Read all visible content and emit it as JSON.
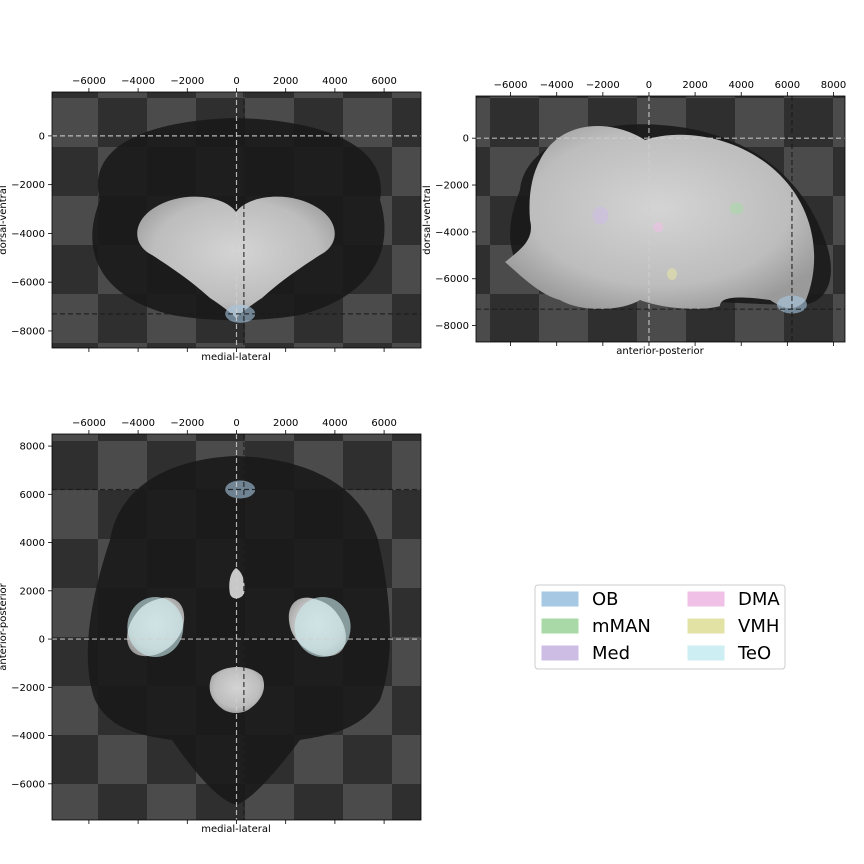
{
  "chart_data": [
    {
      "type": "heatmap",
      "panel": "coronal",
      "xlabel": "medial-lateral",
      "ylabel": "dorsal-ventral",
      "xlim": [
        -7500,
        7500
      ],
      "ylim": [
        -8700,
        1800
      ],
      "xticks": [
        -6000,
        -4000,
        -2000,
        0,
        2000,
        4000,
        6000
      ],
      "yticks": [
        0,
        -2000,
        -4000,
        -6000,
        -8000
      ],
      "crosshair": {
        "x": [
          0,
          300
        ],
        "y": [
          0,
          -7300
        ]
      },
      "regions": [
        {
          "name": "OB",
          "x": 150,
          "y": -7300
        }
      ]
    },
    {
      "type": "heatmap",
      "panel": "sagittal",
      "xlabel": "anterior-posterior",
      "ylabel": "dorsal-ventral",
      "xlim": [
        -7500,
        8500
      ],
      "ylim": [
        -8700,
        1800
      ],
      "xticks": [
        -6000,
        -4000,
        -2000,
        0,
        2000,
        4000,
        6000,
        8000
      ],
      "yticks": [
        0,
        -2000,
        -4000,
        -6000,
        -8000
      ],
      "crosshair": {
        "x": [
          0,
          6200
        ],
        "y": [
          0,
          -7300
        ]
      },
      "regions": [
        {
          "name": "OB",
          "x": 6200,
          "y": -7100
        },
        {
          "name": "mMAN",
          "x": 3800,
          "y": -3000
        },
        {
          "name": "Med",
          "x": -2100,
          "y": -3300
        },
        {
          "name": "DMA",
          "x": 400,
          "y": -3800
        },
        {
          "name": "VMH",
          "x": 1000,
          "y": -5800
        }
      ]
    },
    {
      "type": "heatmap",
      "panel": "horizontal",
      "xlabel": "medial-lateral",
      "ylabel": "anterior-posterior",
      "xlim": [
        -7500,
        7500
      ],
      "ylim": [
        -7500,
        8500
      ],
      "xticks": [
        -6000,
        -4000,
        -2000,
        0,
        2000,
        4000,
        6000
      ],
      "yticks": [
        8000,
        6000,
        4000,
        2000,
        0,
        -2000,
        -4000,
        -6000
      ],
      "crosshair": {
        "x": [
          0,
          300
        ],
        "y": [
          0,
          6200
        ]
      },
      "regions": [
        {
          "name": "OB",
          "x": 150,
          "y": 6200
        },
        {
          "name": "TeO",
          "x": -3300,
          "y": 500
        },
        {
          "name": "TeO",
          "x": 3500,
          "y": 500
        }
      ]
    }
  ],
  "legend": {
    "items": [
      {
        "label": "OB",
        "color": "#a6c8e3"
      },
      {
        "label": "DMA",
        "color": "#f0c0e6"
      },
      {
        "label": "mMAN",
        "color": "#aad9a8"
      },
      {
        "label": "VMH",
        "color": "#e2e2a4"
      },
      {
        "label": "Med",
        "color": "#cdbde4"
      },
      {
        "label": "TeO",
        "color": "#cdeef2"
      }
    ]
  }
}
